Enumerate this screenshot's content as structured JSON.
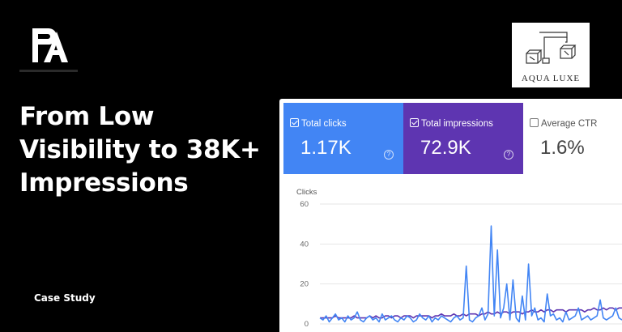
{
  "headline": {
    "line1": "From Low",
    "line2": "Visibility to 38K+",
    "line3": "Impressions"
  },
  "case_study": "Case Study",
  "brand": {
    "name": "AQUA LUXE"
  },
  "metrics": {
    "clicks": {
      "label": "Total clicks",
      "value": "1.17K",
      "checked": true,
      "color": "#4285f4"
    },
    "impressions": {
      "label": "Total impressions",
      "value": "72.9K",
      "checked": true,
      "color": "#5e35b1"
    },
    "ctr": {
      "label": "Average CTR",
      "value": "1.6%",
      "checked": false
    }
  },
  "chart_data": {
    "type": "line",
    "title": "",
    "ylabel": "Clicks",
    "ylim": [
      0,
      60
    ],
    "yticks": [
      "60",
      "40",
      "20",
      "0"
    ],
    "grid": true,
    "series": [
      {
        "color": "#4285f4",
        "values": [
          3,
          2,
          4,
          1,
          3,
          5,
          2,
          3,
          1,
          4,
          2,
          3,
          6,
          2,
          1,
          3,
          4,
          2,
          3,
          1,
          5,
          2,
          3,
          4,
          2,
          1,
          3,
          2,
          4,
          3,
          1,
          2,
          5,
          3,
          2,
          4,
          1,
          3,
          2,
          4,
          3,
          2,
          1,
          3,
          4,
          2,
          3,
          29,
          2,
          1,
          3,
          4,
          8,
          2,
          5,
          49,
          4,
          37,
          3,
          8,
          20,
          2,
          22,
          3,
          1,
          14,
          2,
          30,
          4,
          8,
          2,
          3,
          1,
          15,
          4,
          5,
          2,
          3,
          1,
          6,
          2,
          3,
          4,
          8,
          2,
          3,
          4,
          2,
          3,
          4,
          12,
          3,
          2,
          3,
          4,
          8,
          3,
          2
        ]
      },
      {
        "color": "#5e35b1",
        "values": [
          3,
          3,
          3,
          3,
          3,
          4,
          3,
          3,
          3,
          3,
          3,
          4,
          3,
          3,
          3,
          3,
          4,
          3,
          4,
          3,
          3,
          4,
          4,
          3,
          4,
          4,
          3,
          4,
          4,
          4,
          3,
          4,
          4,
          4,
          4,
          4,
          3,
          4,
          4,
          5,
          4,
          4,
          4,
          5,
          4,
          4,
          5,
          4,
          5,
          5,
          5,
          4,
          5,
          5,
          6,
          5,
          5,
          6,
          5,
          6,
          6,
          5,
          6,
          6,
          6,
          5,
          6,
          6,
          7,
          6,
          6,
          7,
          6,
          7,
          7,
          6,
          7,
          7,
          7,
          6,
          7,
          7,
          7,
          7,
          7,
          6,
          7,
          7,
          8,
          7,
          7,
          8,
          7,
          8,
          8,
          7,
          8,
          8
        ]
      }
    ]
  }
}
